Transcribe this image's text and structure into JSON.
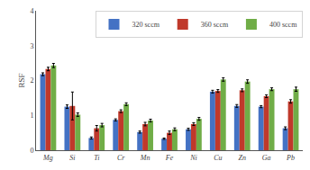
{
  "chart_data": {
    "type": "bar",
    "categories": [
      "Mg",
      "Si",
      "Ti",
      "Cr",
      "Mn",
      "Fe",
      "Ni",
      "Cu",
      "Zn",
      "Ga",
      "Pb"
    ],
    "series": [
      {
        "name": "320 sccm",
        "color": "#4472c4",
        "values": [
          2.18,
          1.25,
          0.35,
          0.87,
          0.52,
          0.33,
          0.6,
          1.68,
          1.27,
          1.25,
          0.63
        ],
        "errors": [
          0.04,
          0.05,
          0.03,
          0.03,
          0.03,
          0.02,
          0.03,
          0.04,
          0.04,
          0.03,
          0.04
        ]
      },
      {
        "name": "360 sccm",
        "color": "#c0392b",
        "values": [
          2.33,
          1.27,
          0.63,
          1.12,
          0.75,
          0.5,
          0.75,
          1.7,
          1.72,
          1.55,
          1.4
        ],
        "errors": [
          0.05,
          0.4,
          0.08,
          0.04,
          0.05,
          0.05,
          0.04,
          0.04,
          0.04,
          0.04,
          0.05
        ]
      },
      {
        "name": "400 sccm",
        "color": "#70ad47",
        "values": [
          2.43,
          1.02,
          0.72,
          1.32,
          0.85,
          0.6,
          0.9,
          2.03,
          1.97,
          1.75,
          1.75
        ],
        "errors": [
          0.06,
          0.05,
          0.05,
          0.04,
          0.04,
          0.04,
          0.04,
          0.05,
          0.05,
          0.04,
          0.06
        ]
      }
    ],
    "ylabel": "RSF",
    "ylim": [
      0,
      4
    ],
    "yticks": [
      0,
      1,
      2,
      3,
      4
    ],
    "grid": false,
    "legend": "upper right"
  }
}
